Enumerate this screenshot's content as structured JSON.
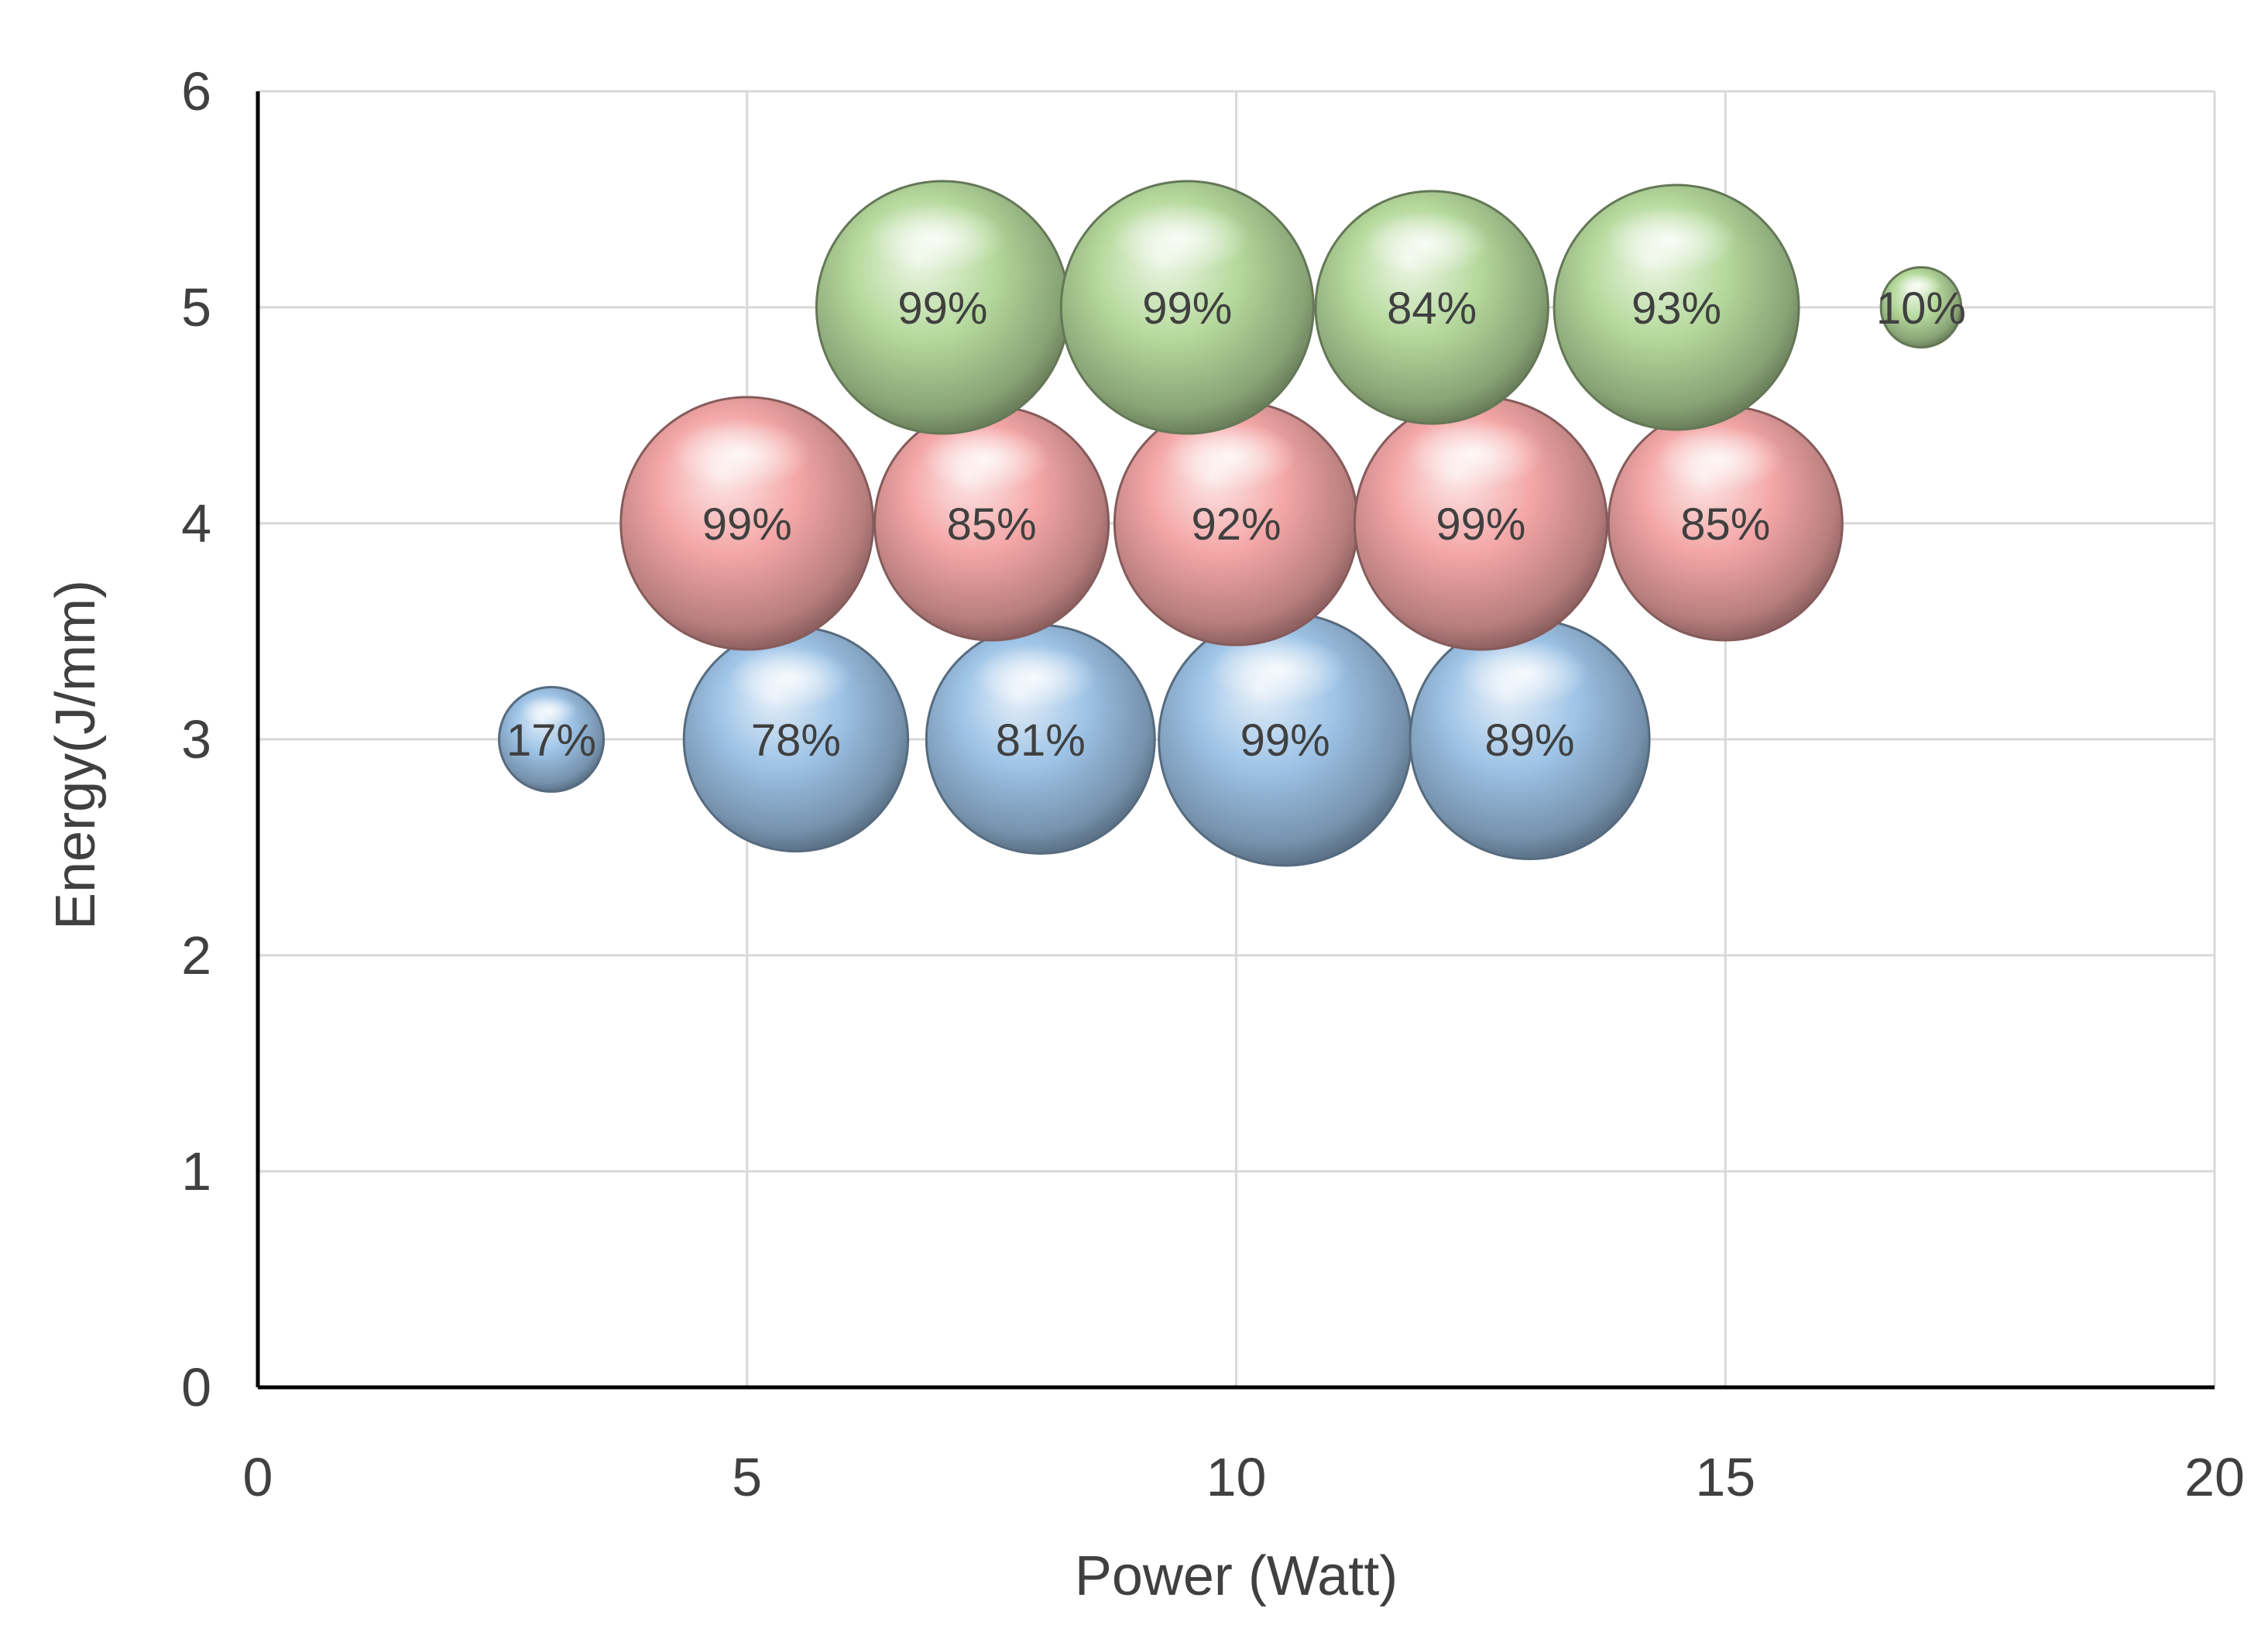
{
  "chart_data": {
    "type": "bubble",
    "title": "",
    "xlabel": "Power (Watt)",
    "ylabel": "Energy(J/mm)",
    "xlim": [
      0,
      20
    ],
    "ylim": [
      0,
      6
    ],
    "x_ticks": [
      "0",
      "5",
      "10",
      "15",
      "20"
    ],
    "y_ticks": [
      "0",
      "1",
      "2",
      "3",
      "4",
      "5",
      "6"
    ],
    "grid": true,
    "legend": "none",
    "series": [
      {
        "color": "#9dc3e6",
        "points": [
          {
            "x": 3,
            "y": 3,
            "value": 17,
            "label": "17%"
          },
          {
            "x": 5.5,
            "y": 3,
            "value": 78,
            "label": "78%"
          },
          {
            "x": 8,
            "y": 3,
            "value": 81,
            "label": "81%"
          },
          {
            "x": 10.5,
            "y": 3,
            "value": 99,
            "label": "99%"
          },
          {
            "x": 13,
            "y": 3,
            "value": 89,
            "label": "89%"
          }
        ]
      },
      {
        "color": "#f4a6a6",
        "points": [
          {
            "x": 5,
            "y": 4,
            "value": 99,
            "label": "99%"
          },
          {
            "x": 7.5,
            "y": 4,
            "value": 85,
            "label": "85%"
          },
          {
            "x": 10,
            "y": 4,
            "value": 92,
            "label": "92%"
          },
          {
            "x": 12.5,
            "y": 4,
            "value": 99,
            "label": "99%"
          },
          {
            "x": 15,
            "y": 4,
            "value": 85,
            "label": "85%"
          }
        ]
      },
      {
        "color": "#b5d99c",
        "points": [
          {
            "x": 7,
            "y": 5,
            "value": 99,
            "label": "99%"
          },
          {
            "x": 9.5,
            "y": 5,
            "value": 99,
            "label": "99%"
          },
          {
            "x": 12,
            "y": 5,
            "value": 84,
            "label": "84%"
          },
          {
            "x": 14.5,
            "y": 5,
            "value": 93,
            "label": "93%"
          },
          {
            "x": 17,
            "y": 5,
            "value": 10,
            "label": "10%"
          }
        ]
      }
    ]
  }
}
